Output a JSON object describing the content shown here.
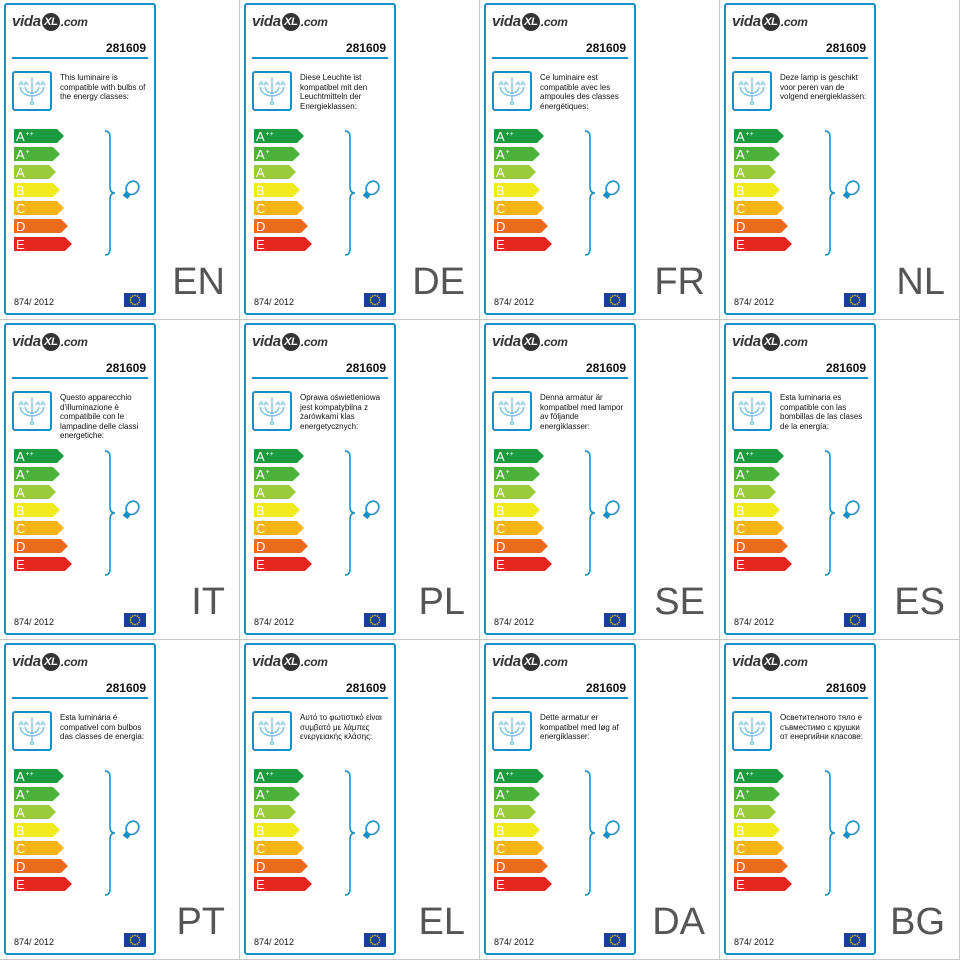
{
  "brand": {
    "logo_part1": "vida",
    "logo_xl": "XL",
    "logo_part2": ".com"
  },
  "article_number": "281609",
  "regulation": "874/ 2012",
  "energy_classes": [
    {
      "letter": "A",
      "plus": "++",
      "color": "#1a9a3c"
    },
    {
      "letter": "A",
      "plus": "+",
      "color": "#4db23a"
    },
    {
      "letter": "A",
      "plus": "",
      "color": "#9acb3c"
    },
    {
      "letter": "B",
      "plus": "",
      "color": "#f0ea1e"
    },
    {
      "letter": "C",
      "plus": "",
      "color": "#f6b417"
    },
    {
      "letter": "D",
      "plus": "",
      "color": "#ec6c1e"
    },
    {
      "letter": "E",
      "plus": "",
      "color": "#e42620"
    }
  ],
  "colors": {
    "frame": "#1b8fc8",
    "eu_flag": "#1a3f96",
    "eu_stars": "#f4d20c"
  },
  "icons": {
    "luminaire": "chandelier-icon",
    "bulb": "bulb-icon",
    "eu": "eu-flag-icon"
  },
  "labels": [
    {
      "lang": "EN",
      "text": "This luminaire is compatible with bulbs of the energy classes:"
    },
    {
      "lang": "DE",
      "text": "Diese Leuchte ist kompatibel mit den Leuchtmitteln der Energieklassen:"
    },
    {
      "lang": "FR",
      "text": "Ce luminaire est compatible avec les ampoules des classes énergétiques:"
    },
    {
      "lang": "NL",
      "text": "Deze lamp is geschikt voor peren van de volgend energieklassen:"
    },
    {
      "lang": "IT",
      "text": "Questo apparecchio d'illuminazione è compatibile con le lampadine delle classi energetiche:"
    },
    {
      "lang": "PL",
      "text": "Oprawa oświetleniowa jest kompatybilna z żarówkami klas energetycznych:"
    },
    {
      "lang": "SE",
      "text": "Denna armatur är kompatibel med lampor av följande energiklasser:"
    },
    {
      "lang": "ES",
      "text": "Esta luminaria es compatible con las bombillas de las clases de la energía:"
    },
    {
      "lang": "PT",
      "text": "Esta luminária é compativel com bulbos das classes de energia:"
    },
    {
      "lang": "EL",
      "text": "Αυτό το φωτιστικό είναι συμβατό με λάμπες ενεργειακής κλάσης:"
    },
    {
      "lang": "DA",
      "text": "Dette armatur er kompatibel med løg af energiklasser:"
    },
    {
      "lang": "BG",
      "text": "Осветителното тяло е съвместимо с крушки от енергийни класове:"
    }
  ]
}
